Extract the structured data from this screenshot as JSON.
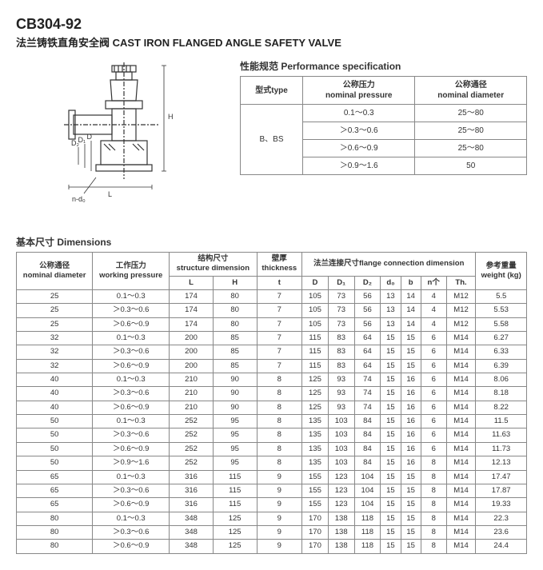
{
  "header": {
    "code": "CB304-92",
    "subtitle": "法兰铸铁直角安全阀 CAST IRON FLANGED ANGLE SAFETY VALVE"
  },
  "spec": {
    "title": "性能规范 Performance specification",
    "headers": {
      "type": "型式type",
      "pressure_cn": "公称压力",
      "pressure_en": "nominal pressure",
      "diameter_cn": "公称通径",
      "diameter_en": "nominal diameter"
    },
    "type_value": "B、BS",
    "rows": [
      {
        "pressure": "0.1～0.3",
        "diameter": "25～80"
      },
      {
        "pressure": "＞0.3～0.6",
        "diameter": "25～80"
      },
      {
        "pressure": "＞0.6～0.9",
        "diameter": "25～80"
      },
      {
        "pressure": "＞0.9～1.6",
        "diameter": "50"
      }
    ]
  },
  "dimensions": {
    "title": "基本尺寸  Dimensions",
    "headers": {
      "nd_cn": "公称通径",
      "nd_en": "nominal diameter",
      "wp_cn": "工作压力",
      "wp_en": "working pressure",
      "sd_cn": "结构尺寸",
      "sd_en": "structure dimension",
      "L": "L",
      "H": "H",
      "th_cn": "壁厚",
      "th_en": "thickness",
      "t": "t",
      "flange_cn": "法兰连接尺寸flange connection dimension",
      "D": "D",
      "D1": "D₁",
      "D2": "D₂",
      "d0": "d₀",
      "b": "b",
      "n": "n个",
      "Th": "Th.",
      "weight_cn": "参考重量",
      "weight_en": "weight (kg)"
    },
    "rows": [
      {
        "nd": "25",
        "wp": "0.1～0.3",
        "L": "174",
        "H": "80",
        "t": "7",
        "D": "105",
        "D1": "73",
        "D2": "56",
        "d0": "13",
        "b": "14",
        "n": "4",
        "Th": "M12",
        "w": "5.5"
      },
      {
        "nd": "25",
        "wp": "＞0.3～0.6",
        "L": "174",
        "H": "80",
        "t": "7",
        "D": "105",
        "D1": "73",
        "D2": "56",
        "d0": "13",
        "b": "14",
        "n": "4",
        "Th": "M12",
        "w": "5.53"
      },
      {
        "nd": "25",
        "wp": "＞0.6～0.9",
        "L": "174",
        "H": "80",
        "t": "7",
        "D": "105",
        "D1": "73",
        "D2": "56",
        "d0": "13",
        "b": "14",
        "n": "4",
        "Th": "M12",
        "w": "5.58"
      },
      {
        "nd": "32",
        "wp": "0.1～0.3",
        "L": "200",
        "H": "85",
        "t": "7",
        "D": "115",
        "D1": "83",
        "D2": "64",
        "d0": "15",
        "b": "15",
        "n": "6",
        "Th": "M14",
        "w": "6.27"
      },
      {
        "nd": "32",
        "wp": "＞0.3～0.6",
        "L": "200",
        "H": "85",
        "t": "7",
        "D": "115",
        "D1": "83",
        "D2": "64",
        "d0": "15",
        "b": "15",
        "n": "6",
        "Th": "M14",
        "w": "6.33"
      },
      {
        "nd": "32",
        "wp": "＞0.6～0.9",
        "L": "200",
        "H": "85",
        "t": "7",
        "D": "115",
        "D1": "83",
        "D2": "64",
        "d0": "15",
        "b": "15",
        "n": "6",
        "Th": "M14",
        "w": "6.39"
      },
      {
        "nd": "40",
        "wp": "0.1～0.3",
        "L": "210",
        "H": "90",
        "t": "8",
        "D": "125",
        "D1": "93",
        "D2": "74",
        "d0": "15",
        "b": "16",
        "n": "6",
        "Th": "M14",
        "w": "8.06"
      },
      {
        "nd": "40",
        "wp": "＞0.3～0.6",
        "L": "210",
        "H": "90",
        "t": "8",
        "D": "125",
        "D1": "93",
        "D2": "74",
        "d0": "15",
        "b": "16",
        "n": "6",
        "Th": "M14",
        "w": "8.18"
      },
      {
        "nd": "40",
        "wp": "＞0.6～0.9",
        "L": "210",
        "H": "90",
        "t": "8",
        "D": "125",
        "D1": "93",
        "D2": "74",
        "d0": "15",
        "b": "16",
        "n": "6",
        "Th": "M14",
        "w": "8.22"
      },
      {
        "nd": "50",
        "wp": "0.1～0.3",
        "L": "252",
        "H": "95",
        "t": "8",
        "D": "135",
        "D1": "103",
        "D2": "84",
        "d0": "15",
        "b": "16",
        "n": "6",
        "Th": "M14",
        "w": "11.5"
      },
      {
        "nd": "50",
        "wp": "＞0.3～0.6",
        "L": "252",
        "H": "95",
        "t": "8",
        "D": "135",
        "D1": "103",
        "D2": "84",
        "d0": "15",
        "b": "16",
        "n": "6",
        "Th": "M14",
        "w": "11.63"
      },
      {
        "nd": "50",
        "wp": "＞0.6～0.9",
        "L": "252",
        "H": "95",
        "t": "8",
        "D": "135",
        "D1": "103",
        "D2": "84",
        "d0": "15",
        "b": "16",
        "n": "6",
        "Th": "M14",
        "w": "11.73"
      },
      {
        "nd": "50",
        "wp": "＞0.9～1.6",
        "L": "252",
        "H": "95",
        "t": "8",
        "D": "135",
        "D1": "103",
        "D2": "84",
        "d0": "15",
        "b": "16",
        "n": "8",
        "Th": "M14",
        "w": "12.13"
      },
      {
        "nd": "65",
        "wp": "0.1～0.3",
        "L": "316",
        "H": "115",
        "t": "9",
        "D": "155",
        "D1": "123",
        "D2": "104",
        "d0": "15",
        "b": "15",
        "n": "8",
        "Th": "M14",
        "w": "17.47"
      },
      {
        "nd": "65",
        "wp": "＞0.3～0.6",
        "L": "316",
        "H": "115",
        "t": "9",
        "D": "155",
        "D1": "123",
        "D2": "104",
        "d0": "15",
        "b": "15",
        "n": "8",
        "Th": "M14",
        "w": "17.87"
      },
      {
        "nd": "65",
        "wp": "＞0.6～0.9",
        "L": "316",
        "H": "115",
        "t": "9",
        "D": "155",
        "D1": "123",
        "D2": "104",
        "d0": "15",
        "b": "15",
        "n": "8",
        "Th": "M14",
        "w": "19.33"
      },
      {
        "nd": "80",
        "wp": "0.1～0.3",
        "L": "348",
        "H": "125",
        "t": "9",
        "D": "170",
        "D1": "138",
        "D2": "118",
        "d0": "15",
        "b": "15",
        "n": "8",
        "Th": "M14",
        "w": "22.3"
      },
      {
        "nd": "80",
        "wp": "＞0.3～0.6",
        "L": "348",
        "H": "125",
        "t": "9",
        "D": "170",
        "D1": "138",
        "D2": "118",
        "d0": "15",
        "b": "15",
        "n": "8",
        "Th": "M14",
        "w": "23.6"
      },
      {
        "nd": "80",
        "wp": "＞0.6～0.9",
        "L": "348",
        "H": "125",
        "t": "9",
        "D": "170",
        "D1": "138",
        "D2": "118",
        "d0": "15",
        "b": "15",
        "n": "8",
        "Th": "M14",
        "w": "24.4"
      }
    ]
  },
  "diagram_labels": {
    "H": "H",
    "L": "L",
    "D": "D",
    "D1": "D₁",
    "D2": "D₂",
    "nd": "n-d₀"
  }
}
